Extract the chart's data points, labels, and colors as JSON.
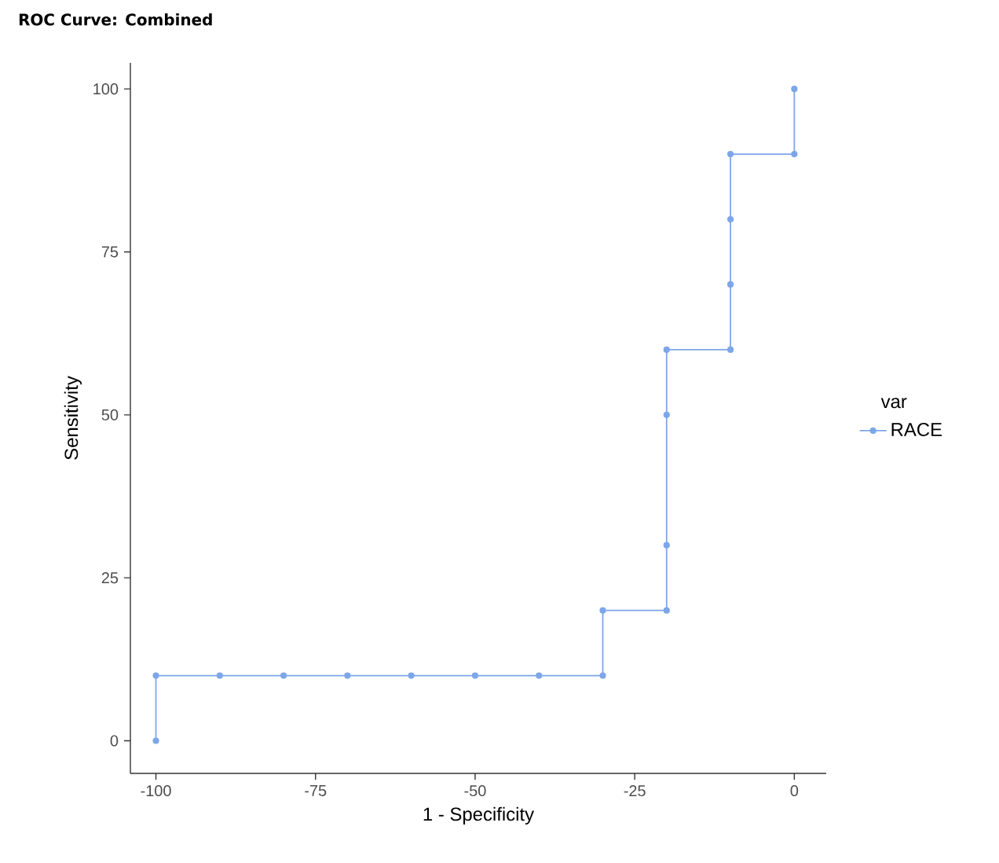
{
  "chart_data": {
    "type": "line",
    "title": "ROC Curve: Combined",
    "xlabel": "1 - Specificity",
    "ylabel": "Sensitivity",
    "legend_title": "var",
    "x": [
      -100,
      -100,
      -90,
      -80,
      -70,
      -60,
      -50,
      -40,
      -30,
      -30,
      -20,
      -20,
      -20,
      -20,
      -10,
      -10,
      -10,
      -10,
      0,
      0
    ],
    "series": [
      {
        "name": "RACE",
        "color": "#7ea6e8",
        "values": [
          0,
          10,
          10,
          10,
          10,
          10,
          10,
          10,
          10,
          20,
          20,
          30,
          50,
          60,
          60,
          70,
          80,
          90,
          90,
          100
        ]
      }
    ],
    "xlim": [
      -104,
      5
    ],
    "ylim": [
      -5,
      104
    ],
    "xticks": [
      -100,
      -75,
      -50,
      -25,
      0
    ],
    "yticks": [
      0,
      25,
      50,
      75,
      100
    ],
    "grid": false,
    "legend": "right",
    "marker": "circle",
    "line_style": "solid"
  }
}
